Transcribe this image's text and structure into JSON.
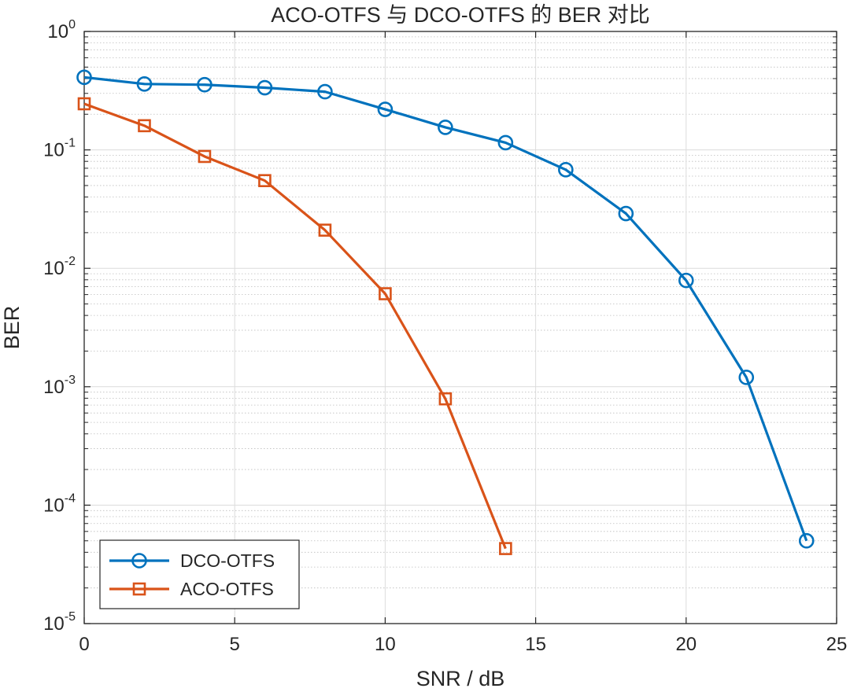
{
  "chart_data": {
    "type": "line",
    "title": "ACO-OTFS 与 DCO-OTFS 的 BER 对比",
    "xlabel": "SNR / dB",
    "ylabel": "BER",
    "xlim": [
      0,
      25
    ],
    "ylim": [
      1e-05,
      1
    ],
    "yscale": "log",
    "grid": true,
    "minor_grid": true,
    "legend_position": "bottom-left",
    "x_ticks": [
      {
        "value": 0,
        "label": "0"
      },
      {
        "value": 5,
        "label": "5"
      },
      {
        "value": 10,
        "label": "10"
      },
      {
        "value": 15,
        "label": "15"
      },
      {
        "value": 20,
        "label": "20"
      },
      {
        "value": 25,
        "label": "25"
      }
    ],
    "y_ticks": [
      {
        "value": 1,
        "base": "10",
        "exp": "0"
      },
      {
        "value": 0.1,
        "base": "10",
        "exp": "-1"
      },
      {
        "value": 0.01,
        "base": "10",
        "exp": "-2"
      },
      {
        "value": 0.001,
        "base": "10",
        "exp": "-3"
      },
      {
        "value": 0.0001,
        "base": "10",
        "exp": "-4"
      },
      {
        "value": 1e-05,
        "base": "10",
        "exp": "-5"
      }
    ],
    "series": [
      {
        "name": "DCO-OTFS",
        "color": "#0072BD",
        "marker": "circle",
        "x": [
          0,
          2,
          4,
          6,
          8,
          10,
          12,
          14,
          16,
          18,
          20,
          22,
          24
        ],
        "y": [
          0.41,
          0.36,
          0.355,
          0.335,
          0.31,
          0.22,
          0.155,
          0.115,
          0.068,
          0.029,
          0.0079,
          0.0012,
          5e-05
        ]
      },
      {
        "name": "ACO-OTFS",
        "color": "#D95319",
        "marker": "square",
        "x": [
          0,
          2,
          4,
          6,
          8,
          10,
          12,
          14
        ],
        "y": [
          0.245,
          0.16,
          0.088,
          0.055,
          0.021,
          0.0061,
          0.00079,
          4.3e-05
        ]
      }
    ]
  }
}
